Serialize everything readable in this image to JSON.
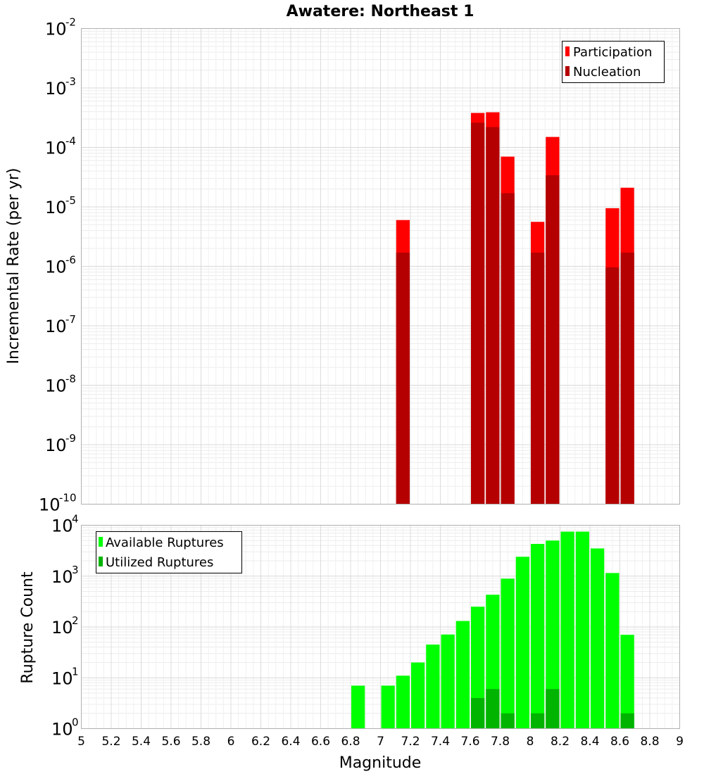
{
  "chart_data": [
    {
      "type": "bar",
      "title": "Awatere: Northeast 1",
      "xlabel": "",
      "ylabel": "Incremental Rate (per yr)",
      "y_scale": "log",
      "ylim_exp": [
        -10,
        -2
      ],
      "xlim": [
        5,
        9
      ],
      "grid": true,
      "legend": {
        "placement": "top-right"
      },
      "bar_width": 0.1,
      "series": [
        {
          "name": "Participation",
          "color": "#ff0000",
          "points": [
            {
              "x": 7.1,
              "y": 6e-06
            },
            {
              "x": 7.6,
              "y": 0.00038
            },
            {
              "x": 7.7,
              "y": 0.00039
            },
            {
              "x": 7.8,
              "y": 7e-05
            },
            {
              "x": 8.0,
              "y": 5.6e-06
            },
            {
              "x": 8.1,
              "y": 0.00015
            },
            {
              "x": 8.5,
              "y": 9.5e-06
            },
            {
              "x": 8.6,
              "y": 2.1e-05
            }
          ]
        },
        {
          "name": "Nucleation",
          "color": "#b40000",
          "points": [
            {
              "x": 7.1,
              "y": 1.7e-06
            },
            {
              "x": 7.6,
              "y": 0.00026
            },
            {
              "x": 7.7,
              "y": 0.00022
            },
            {
              "x": 7.8,
              "y": 1.7e-05
            },
            {
              "x": 8.0,
              "y": 1.7e-06
            },
            {
              "x": 8.1,
              "y": 3.4e-05
            },
            {
              "x": 8.5,
              "y": 9.6e-07
            },
            {
              "x": 8.6,
              "y": 1.7e-06
            }
          ]
        }
      ]
    },
    {
      "type": "bar",
      "title": "",
      "xlabel": "Magnitude",
      "ylabel": "Rupture Count",
      "y_scale": "log",
      "ylim_exp": [
        0,
        4
      ],
      "xlim": [
        5,
        9
      ],
      "x_ticks": [
        "5",
        "5.2",
        "5.4",
        "5.6",
        "5.8",
        "6",
        "6.2",
        "6.4",
        "6.6",
        "6.8",
        "7",
        "7.2",
        "7.4",
        "7.6",
        "7.8",
        "8",
        "8.2",
        "8.4",
        "8.6",
        "8.8",
        "9"
      ],
      "grid": true,
      "legend": {
        "placement": "top-left"
      },
      "bar_width": 0.1,
      "series": [
        {
          "name": "Available Ruptures",
          "color": "#00ff00",
          "points": [
            {
              "x": 6.8,
              "y": 7
            },
            {
              "x": 7.0,
              "y": 7
            },
            {
              "x": 7.1,
              "y": 11
            },
            {
              "x": 7.2,
              "y": 20
            },
            {
              "x": 7.3,
              "y": 45
            },
            {
              "x": 7.4,
              "y": 71
            },
            {
              "x": 7.5,
              "y": 131
            },
            {
              "x": 7.6,
              "y": 250
            },
            {
              "x": 7.7,
              "y": 430
            },
            {
              "x": 7.8,
              "y": 890
            },
            {
              "x": 7.9,
              "y": 2400
            },
            {
              "x": 8.0,
              "y": 4300
            },
            {
              "x": 8.1,
              "y": 5000
            },
            {
              "x": 8.2,
              "y": 7500
            },
            {
              "x": 8.3,
              "y": 7500
            },
            {
              "x": 8.4,
              "y": 3500
            },
            {
              "x": 8.5,
              "y": 1150
            },
            {
              "x": 8.6,
              "y": 70
            }
          ]
        },
        {
          "name": "Utilized Ruptures",
          "color": "#00b400",
          "points": [
            {
              "x": 7.1,
              "y": 1
            },
            {
              "x": 7.6,
              "y": 4
            },
            {
              "x": 7.7,
              "y": 6
            },
            {
              "x": 7.8,
              "y": 2
            },
            {
              "x": 8.0,
              "y": 2
            },
            {
              "x": 8.1,
              "y": 6
            },
            {
              "x": 8.5,
              "y": 1
            },
            {
              "x": 8.6,
              "y": 2
            }
          ]
        }
      ]
    }
  ]
}
